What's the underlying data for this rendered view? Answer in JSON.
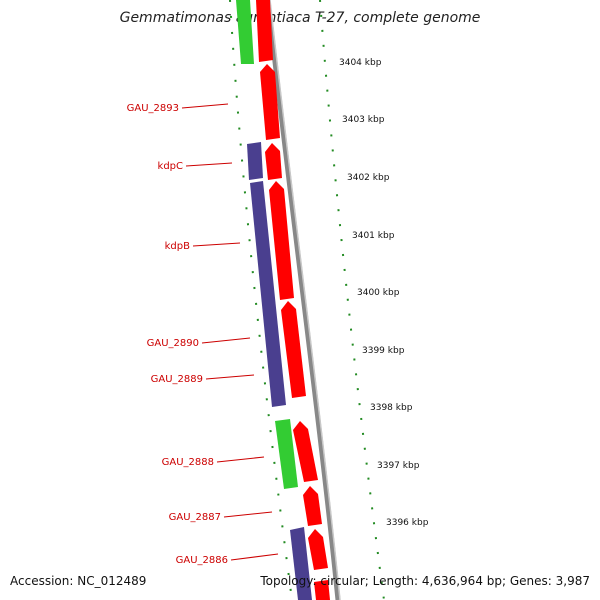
{
  "title": "Gemmatimonas aurantiaca T-27, complete genome",
  "footer": {
    "accession": "Accession: NC_012489",
    "topology": "Topology: circular; Length: 4,636,964 bp; Genes: 3,987"
  },
  "colors": {
    "gene_label": "#cc0000",
    "forward_cds": "#ff0000",
    "reverse_cds": "#4a3f8f",
    "rna": "#33cc33",
    "backbone": "#888888",
    "tick": "#228b22"
  },
  "scale_labels": [
    "3404 kbp",
    "3403 kbp",
    "3402 kbp",
    "3401 kbp",
    "3400 kbp",
    "3399 kbp",
    "3398 kbp",
    "3397 kbp",
    "3396 kbp"
  ],
  "gene_labels": [
    "GAU_2893",
    "kdpC",
    "kdpB",
    "GAU_2890",
    "GAU_2889",
    "GAU_2888",
    "GAU_2887",
    "GAU_2886"
  ]
}
